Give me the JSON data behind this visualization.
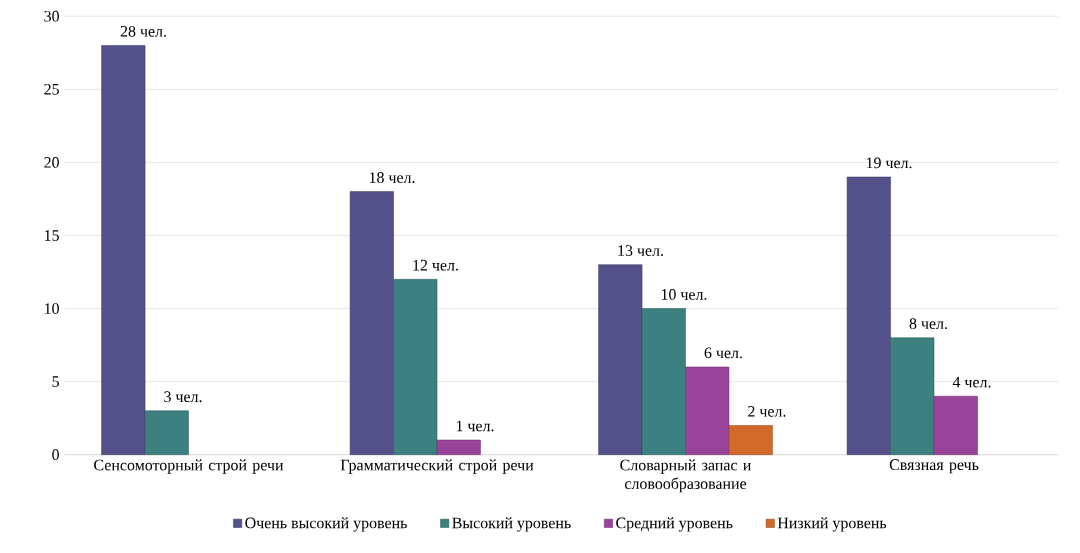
{
  "chart_data": {
    "type": "bar",
    "categories": [
      "Сенсомоторный строй речи",
      "Грамматический строй речи",
      "Словарный запас и словообразование",
      "Связная речь"
    ],
    "series": [
      {
        "name": "Очень высокий уровень",
        "color": "#545089",
        "values": [
          28,
          18,
          13,
          19
        ],
        "value_labels": [
          "28 чел.",
          "18 чел.",
          "13 чел.",
          "19 чел."
        ]
      },
      {
        "name": "Высокий уровень",
        "color": "#3d8080",
        "values": [
          3,
          12,
          10,
          8
        ],
        "value_labels": [
          "3 чел.",
          "12 чел.",
          "10 чел.",
          "8 чел."
        ]
      },
      {
        "name": "Средний уровень",
        "color": "#9a439a",
        "values": [
          null,
          1,
          6,
          4
        ],
        "value_labels": [
          null,
          "1 чел.",
          "6 чел.",
          "4 чел."
        ]
      },
      {
        "name": "Низкий уровень",
        "color": "#d0692a",
        "values": [
          null,
          null,
          2,
          null
        ],
        "value_labels": [
          null,
          null,
          "2 чел.",
          null
        ]
      }
    ],
    "ylim": [
      0,
      30
    ],
    "yticks": [
      0,
      5,
      10,
      15,
      20,
      25,
      30
    ],
    "grid": "y",
    "legend": "bottom"
  }
}
